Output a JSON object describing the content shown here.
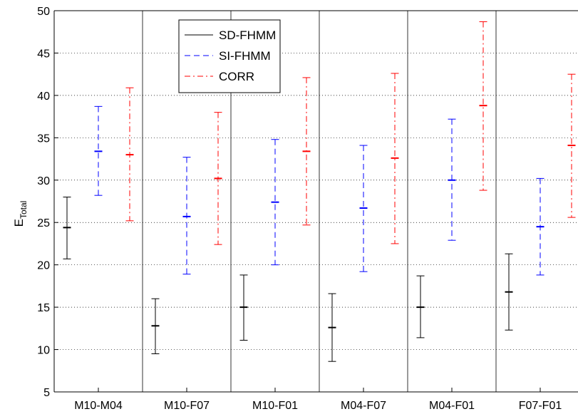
{
  "chart_data": {
    "type": "errorbar",
    "ylabel": "E",
    "ylabel_subscript": "Total",
    "ylim": [
      5,
      50
    ],
    "yticks": [
      5,
      10,
      15,
      20,
      25,
      30,
      35,
      40,
      45,
      50
    ],
    "grid": "horizontal-dotted",
    "legend_position": "top-left",
    "categories": [
      "M10-M04",
      "M10-F07",
      "M10-F01",
      "M04-F07",
      "M04-F01",
      "F07-F01"
    ],
    "series": [
      {
        "name": "SD-FHMM",
        "color": "#000000",
        "line_style": "solid",
        "mean": [
          24.4,
          12.8,
          15.0,
          12.6,
          15.0,
          16.8
        ],
        "low": [
          20.7,
          9.5,
          11.1,
          8.6,
          11.4,
          12.3
        ],
        "high": [
          28.0,
          16.0,
          18.8,
          16.6,
          18.7,
          21.3
        ]
      },
      {
        "name": "SI-FHMM",
        "color": "#0000ff",
        "line_style": "dashed",
        "mean": [
          33.4,
          25.7,
          27.4,
          26.7,
          30.0,
          24.5
        ],
        "low": [
          28.2,
          18.9,
          20.0,
          19.2,
          22.9,
          18.8
        ],
        "high": [
          38.7,
          32.7,
          34.8,
          34.1,
          37.2,
          30.2
        ]
      },
      {
        "name": "CORR",
        "color": "#ff0000",
        "line_style": "dashdot",
        "mean": [
          33.0,
          30.2,
          33.4,
          32.6,
          38.8,
          34.1
        ],
        "low": [
          25.2,
          22.4,
          24.7,
          22.5,
          28.8,
          25.6
        ],
        "high": [
          40.9,
          38.0,
          42.1,
          42.6,
          48.7,
          42.5
        ]
      }
    ]
  }
}
